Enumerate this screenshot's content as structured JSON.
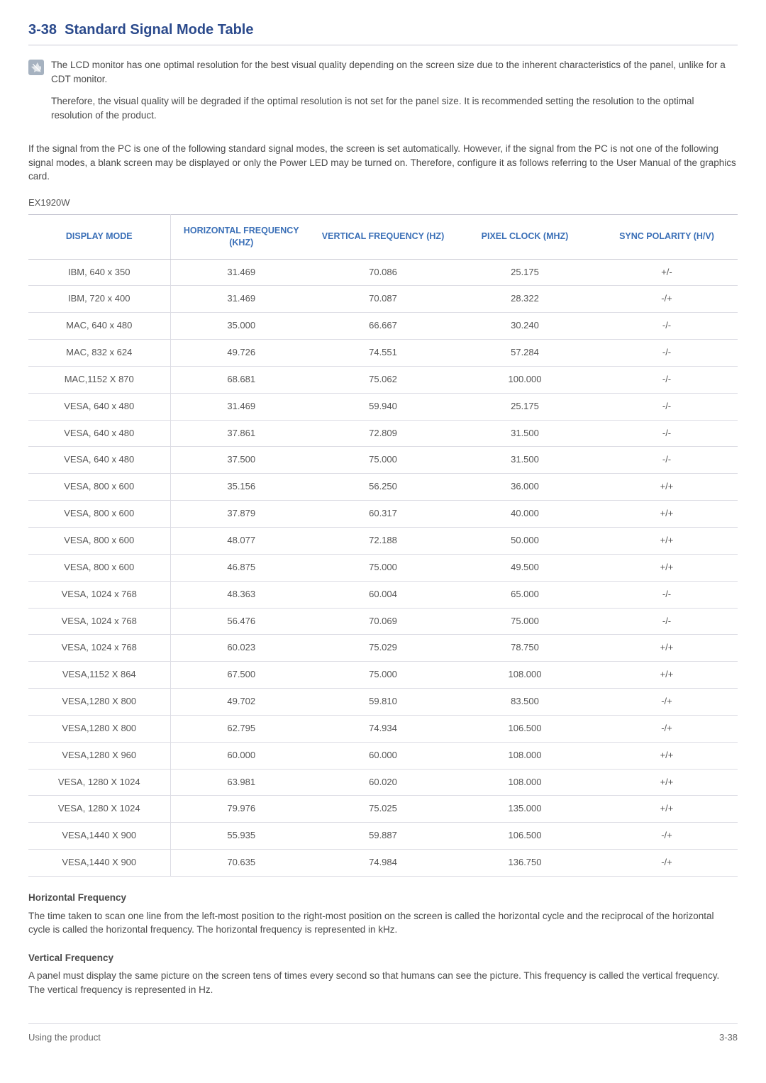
{
  "heading": {
    "number": "3-38",
    "title": "Standard Signal Mode Table"
  },
  "note": {
    "p1": "The LCD monitor has one optimal resolution for the best visual quality depending on the screen size due to the inherent characteristics of the panel, unlike for a CDT monitor.",
    "p2": "Therefore, the visual quality will be degraded if the optimal resolution is not set for the panel size. It is recommended setting the resolution to the optimal resolution of the product."
  },
  "intro": "If the signal from the PC is one of the following standard signal modes, the screen is set automatically. However, if the signal from the PC is not one of the following signal modes, a blank screen may be displayed or only the Power LED may be turned on. Therefore, configure it as follows referring to the User Manual of the graphics card.",
  "model": "EX1920W",
  "table": {
    "headers": {
      "mode": "DISPLAY MODE",
      "hfreq": "HORIZONTAL FREQUENCY (KHZ)",
      "vfreq": "VERTICAL FREQUENCY (HZ)",
      "pclock": "PIXEL CLOCK (MHZ)",
      "sync": "SYNC POLARITY (H/V)"
    },
    "col_widths": [
      "20%",
      "20%",
      "20%",
      "20%",
      "20%"
    ],
    "header_color": "#3a6fb7",
    "border_color": "#dcdce4",
    "rows": [
      [
        "IBM, 640 x 350",
        "31.469",
        "70.086",
        "25.175",
        "+/-"
      ],
      [
        "IBM, 720 x 400",
        "31.469",
        "70.087",
        "28.322",
        "-/+"
      ],
      [
        "MAC, 640 x 480",
        "35.000",
        "66.667",
        "30.240",
        "-/-"
      ],
      [
        "MAC, 832 x 624",
        "49.726",
        "74.551",
        "57.284",
        "-/-"
      ],
      [
        "MAC,1152 X 870",
        "68.681",
        "75.062",
        "100.000",
        "-/-"
      ],
      [
        "VESA, 640 x 480",
        "31.469",
        "59.940",
        "25.175",
        "-/-"
      ],
      [
        "VESA, 640 x 480",
        "37.861",
        "72.809",
        "31.500",
        "-/-"
      ],
      [
        "VESA, 640 x 480",
        "37.500",
        "75.000",
        "31.500",
        "-/-"
      ],
      [
        "VESA, 800 x 600",
        "35.156",
        "56.250",
        "36.000",
        "+/+"
      ],
      [
        "VESA, 800 x 600",
        "37.879",
        "60.317",
        "40.000",
        "+/+"
      ],
      [
        "VESA, 800 x 600",
        "48.077",
        "72.188",
        "50.000",
        "+/+"
      ],
      [
        "VESA, 800 x 600",
        "46.875",
        "75.000",
        "49.500",
        "+/+"
      ],
      [
        "VESA, 1024 x 768",
        "48.363",
        "60.004",
        "65.000",
        "-/-"
      ],
      [
        "VESA, 1024 x 768",
        "56.476",
        "70.069",
        "75.000",
        "-/-"
      ],
      [
        "VESA, 1024 x 768",
        "60.023",
        "75.029",
        "78.750",
        "+/+"
      ],
      [
        "VESA,1152 X 864",
        "67.500",
        "75.000",
        "108.000",
        "+/+"
      ],
      [
        "VESA,1280 X 800",
        "49.702",
        "59.810",
        "83.500",
        "-/+"
      ],
      [
        "VESA,1280 X 800",
        "62.795",
        "74.934",
        "106.500",
        "-/+"
      ],
      [
        "VESA,1280 X 960",
        "60.000",
        "60.000",
        "108.000",
        "+/+"
      ],
      [
        "VESA, 1280 X 1024",
        "63.981",
        "60.020",
        "108.000",
        "+/+"
      ],
      [
        "VESA, 1280 X 1024",
        "79.976",
        "75.025",
        "135.000",
        "+/+"
      ],
      [
        "VESA,1440 X 900",
        "55.935",
        "59.887",
        "106.500",
        "-/+"
      ],
      [
        "VESA,1440 X 900",
        "70.635",
        "74.984",
        "136.750",
        "-/+"
      ]
    ]
  },
  "hfreq_section": {
    "title": "Horizontal Frequency",
    "text": "The time taken to scan one line from the left-most position to the right-most position on the screen is called the horizontal cycle and the reciprocal of the horizontal cycle is called the horizontal frequency. The horizontal frequency is represented in kHz."
  },
  "vfreq_section": {
    "title": "Vertical Frequency",
    "text": "A panel must display the same picture on the screen tens of times every second so that humans can see the picture. This frequency is called the vertical frequency. The vertical frequency is represented in Hz."
  },
  "footer": {
    "left": "Using the product",
    "right": "3-38"
  },
  "colors": {
    "heading": "#2b4a8c",
    "table_header": "#3a6fb7",
    "body_text": "#4a4a4a",
    "rule": "#c8c8d4"
  }
}
